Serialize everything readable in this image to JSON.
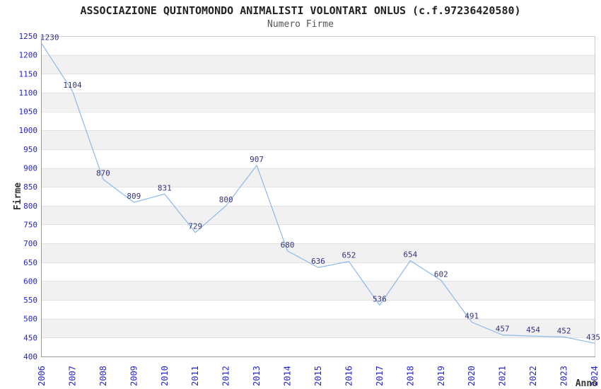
{
  "chart_data": {
    "type": "line",
    "title": "ASSOCIAZIONE QUINTOMONDO ANIMALISTI VOLONTARI ONLUS (c.f.97236420580)",
    "subtitle": "Numero Firme",
    "xlabel": "Anno",
    "ylabel": "Firme",
    "categories": [
      "2006",
      "2007",
      "2008",
      "2009",
      "2010",
      "2011",
      "2012",
      "2013",
      "2014",
      "2015",
      "2016",
      "2017",
      "2018",
      "2019",
      "2020",
      "2021",
      "2022",
      "2023",
      "2024"
    ],
    "values": [
      1230,
      1104,
      870,
      809,
      831,
      729,
      800,
      907,
      680,
      636,
      652,
      536,
      654,
      602,
      491,
      457,
      454,
      452,
      435
    ],
    "ylim": [
      400,
      1250
    ],
    "ytick_step": 50,
    "grid": "horizontal-only",
    "banding": "alternating-gray-rows",
    "legend": "none",
    "markers": "none",
    "colors": {
      "line": "#8ab9ea",
      "tick_labels": "#2424cc",
      "point_labels": "#333380",
      "title": "#222222",
      "subtitle": "#555555",
      "axis_titles": "#333333",
      "band": "#f1f1f1",
      "gridline": "#e2e2e2",
      "axis": "#999999",
      "border": "#c9c9c9",
      "background": "#ffffff"
    }
  }
}
